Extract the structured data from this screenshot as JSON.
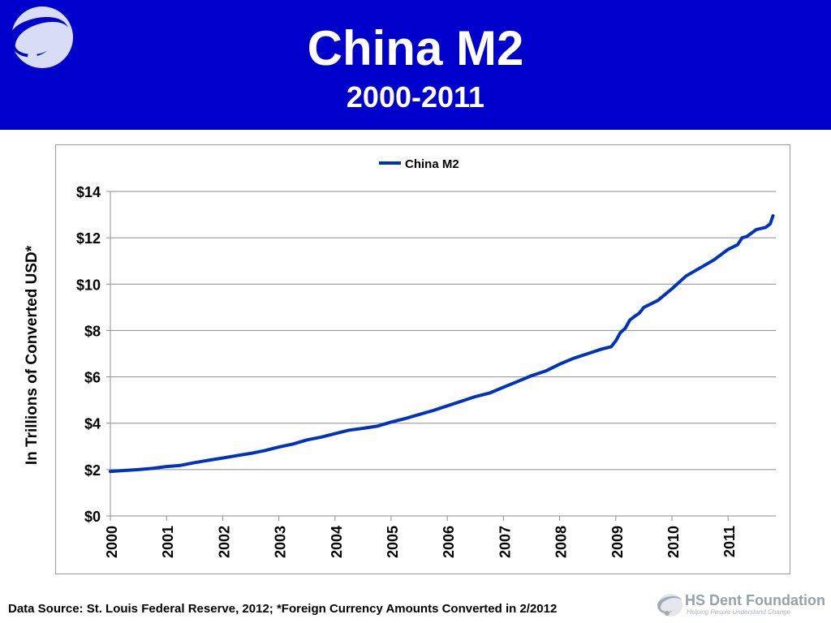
{
  "header": {
    "title": "China M2",
    "subtitle": "2000-2011",
    "background_color": "#0000cc",
    "logo_icon": "orbit-logo-icon"
  },
  "chart_data": {
    "type": "line",
    "ylabel": "In Trillions of Converted USD*",
    "ylim": [
      0,
      14
    ],
    "yticks": [
      0,
      2,
      4,
      6,
      8,
      10,
      12,
      14
    ],
    "ytick_labels": [
      "$0",
      "$2",
      "$4",
      "$6",
      "$8",
      "$10",
      "$12",
      "$14"
    ],
    "xlim": [
      2000,
      2011.85
    ],
    "xticks": [
      2000,
      2001,
      2002,
      2003,
      2004,
      2005,
      2006,
      2007,
      2008,
      2009,
      2010,
      2011
    ],
    "xtick_labels": [
      "2000",
      "2001",
      "2002",
      "2003",
      "2004",
      "2005",
      "2006",
      "2007",
      "2008",
      "2009",
      "2010",
      "2011"
    ],
    "grid": true,
    "legend_position": "top-center",
    "series": [
      {
        "name": "China M2",
        "color": "#0033bb",
        "x": [
          2000.0,
          2000.25,
          2000.5,
          2000.75,
          2001.0,
          2001.25,
          2001.5,
          2001.75,
          2002.0,
          2002.25,
          2002.5,
          2002.75,
          2003.0,
          2003.25,
          2003.5,
          2003.75,
          2004.0,
          2004.25,
          2004.5,
          2004.75,
          2005.0,
          2005.25,
          2005.5,
          2005.75,
          2006.0,
          2006.25,
          2006.5,
          2006.75,
          2007.0,
          2007.25,
          2007.5,
          2007.75,
          2008.0,
          2008.25,
          2008.5,
          2008.75,
          2008.92,
          2009.0,
          2009.08,
          2009.17,
          2009.25,
          2009.33,
          2009.42,
          2009.5,
          2009.75,
          2010.0,
          2010.25,
          2010.5,
          2010.75,
          2011.0,
          2011.17,
          2011.25,
          2011.33,
          2011.5,
          2011.67,
          2011.75,
          2011.8
        ],
        "y": [
          1.92,
          1.96,
          2.0,
          2.05,
          2.13,
          2.18,
          2.3,
          2.4,
          2.5,
          2.6,
          2.7,
          2.82,
          2.97,
          3.1,
          3.28,
          3.4,
          3.55,
          3.7,
          3.78,
          3.87,
          4.05,
          4.2,
          4.38,
          4.55,
          4.75,
          4.95,
          5.15,
          5.3,
          5.55,
          5.8,
          6.05,
          6.25,
          6.55,
          6.8,
          7.0,
          7.2,
          7.3,
          7.55,
          7.9,
          8.1,
          8.45,
          8.6,
          8.75,
          9.0,
          9.3,
          9.8,
          10.35,
          10.7,
          11.05,
          11.5,
          11.7,
          12.0,
          12.05,
          12.35,
          12.45,
          12.6,
          12.95
        ]
      }
    ]
  },
  "footer": {
    "source": "Data Source: St. Louis Federal Reserve, 2012; *Foreign Currency Amounts Converted in 2/2012"
  },
  "brand": {
    "name": "HS Dent Foundation",
    "tagline": "Helping People Understand Change",
    "logo_icon": "hs-dent-logo-icon"
  }
}
